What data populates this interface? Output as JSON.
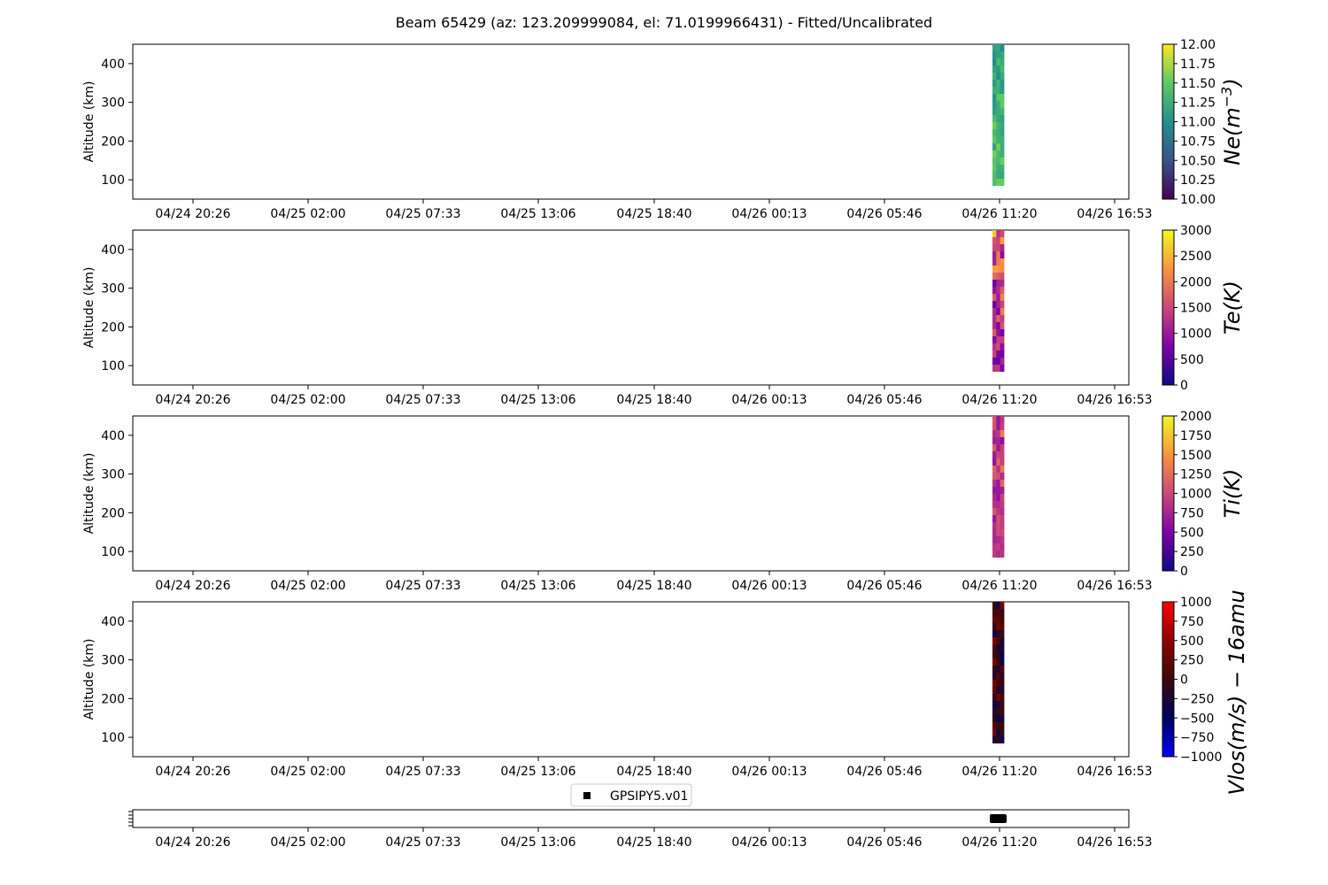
{
  "title": "Beam 65429 (az: 123.209999084, el: 71.0199966431) - Fitted/Uncalibrated",
  "chart_data": [
    {
      "type": "heatmap",
      "ylabel": "Altitude (km)",
      "yticks": [
        100,
        200,
        300,
        400
      ],
      "ylim": [
        50,
        450
      ],
      "xtick_labels": [
        "04/24 20:26",
        "04/25 02:00",
        "04/25 07:33",
        "04/25 13:06",
        "04/25 18:40",
        "04/26 00:13",
        "04/26 05:46",
        "04/26 11:20",
        "04/26 16:53"
      ],
      "data_time": "04/26 11:20",
      "altitude_range": [
        85,
        450
      ],
      "colorbar": {
        "label": "Ne(m^-3)",
        "cmap": "viridis",
        "ticks": [
          "10.00",
          "10.25",
          "10.50",
          "10.75",
          "11.00",
          "11.25",
          "11.50",
          "11.75",
          "12.00"
        ],
        "range": [
          10,
          12
        ]
      }
    },
    {
      "type": "heatmap",
      "ylabel": "Altitude (km)",
      "yticks": [
        100,
        200,
        300,
        400
      ],
      "ylim": [
        50,
        450
      ],
      "xtick_labels": [
        "04/24 20:26",
        "04/25 02:00",
        "04/25 07:33",
        "04/25 13:06",
        "04/25 18:40",
        "04/26 00:13",
        "04/26 05:46",
        "04/26 11:20",
        "04/26 16:53"
      ],
      "data_time": "04/26 11:20",
      "altitude_range": [
        85,
        450
      ],
      "colorbar": {
        "label": "Te(K)",
        "cmap": "plasma",
        "ticks": [
          "0",
          "500",
          "1000",
          "1500",
          "2000",
          "2500",
          "3000"
        ],
        "range": [
          0,
          3000
        ]
      }
    },
    {
      "type": "heatmap",
      "ylabel": "Altitude (km)",
      "yticks": [
        100,
        200,
        300,
        400
      ],
      "ylim": [
        50,
        450
      ],
      "xtick_labels": [
        "04/24 20:26",
        "04/25 02:00",
        "04/25 07:33",
        "04/25 13:06",
        "04/25 18:40",
        "04/26 00:13",
        "04/26 05:46",
        "04/26 11:20",
        "04/26 16:53"
      ],
      "data_time": "04/26 11:20",
      "altitude_range": [
        85,
        450
      ],
      "colorbar": {
        "label": "Ti(K)",
        "cmap": "plasma",
        "ticks": [
          "0",
          "250",
          "500",
          "750",
          "1000",
          "1250",
          "1500",
          "1750",
          "2000"
        ],
        "range": [
          0,
          2000
        ]
      }
    },
    {
      "type": "heatmap",
      "ylabel": "Altitude (km)",
      "yticks": [
        100,
        200,
        300,
        400
      ],
      "ylim": [
        50,
        450
      ],
      "xtick_labels": [
        "04/24 20:26",
        "04/25 02:00",
        "04/25 07:33",
        "04/25 13:06",
        "04/25 18:40",
        "04/26 00:13",
        "04/26 05:46",
        "04/26 11:20",
        "04/26 16:53"
      ],
      "data_time": "04/26 11:20",
      "altitude_range": [
        85,
        450
      ],
      "colorbar": {
        "label": "Vlos(m/s) - 16amu",
        "cmap": "seismic",
        "ticks": [
          "-1000",
          "-750",
          "-500",
          "-250",
          "0",
          "250",
          "500",
          "750",
          "1000"
        ],
        "range": [
          -1000,
          1000
        ]
      }
    },
    {
      "type": "scatter",
      "xtick_labels": [
        "04/24 20:26",
        "04/25 02:00",
        "04/25 07:33",
        "04/25 13:06",
        "04/25 18:40",
        "04/26 00:13",
        "04/26 05:46",
        "04/26 11:20",
        "04/26 16:53"
      ],
      "series": [
        {
          "name": "GPSIPY5.v01",
          "x": [
            "04/26 11:20"
          ],
          "marker": "square",
          "color": "#000000"
        }
      ],
      "legend": "top-center"
    }
  ],
  "colors": {
    "ne_scale": [
      "#440154",
      "#3b528b",
      "#21918c",
      "#5ec962",
      "#fde725"
    ],
    "te_scale": [
      "#0d0887",
      "#7e03a8",
      "#cc4778",
      "#f89540",
      "#f0f921"
    ],
    "ti_scale": [
      "#0d0887",
      "#7e03a8",
      "#cc4778",
      "#f89540",
      "#f0f921"
    ],
    "vlos_scale": [
      "#0000ff",
      "#000060",
      "#3a0a0a",
      "#900000",
      "#ff0000"
    ]
  }
}
